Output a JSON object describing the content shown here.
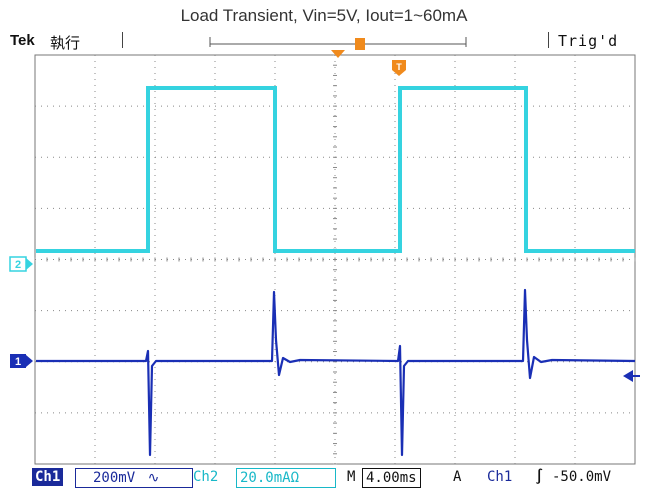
{
  "title": "Load Transient, Vin=5V, Iout=1~60mA",
  "header": {
    "brand": "Tek",
    "run_state": "執行",
    "trigger_status": "Trig'd",
    "trigger_marker": "T"
  },
  "channel_markers": {
    "ch2": "2",
    "ch1": "1"
  },
  "footer": {
    "ch1_label": "Ch1",
    "ch1_scale": "200mV",
    "ch1_coupling_symbol": "∿",
    "ch2_label": "Ch2",
    "ch2_scale": "20.0mAΩ",
    "time_label": "M",
    "time_scale": "4.00ms",
    "trigger_mode": "A",
    "trigger_source": "Ch1",
    "trigger_slope_symbol": "∫",
    "trigger_level": "-50.0mV"
  },
  "colors": {
    "ch1": "#1a2fb5",
    "ch2": "#35d3e0",
    "marker": "#f08a1c",
    "grid": "#888888"
  }
}
